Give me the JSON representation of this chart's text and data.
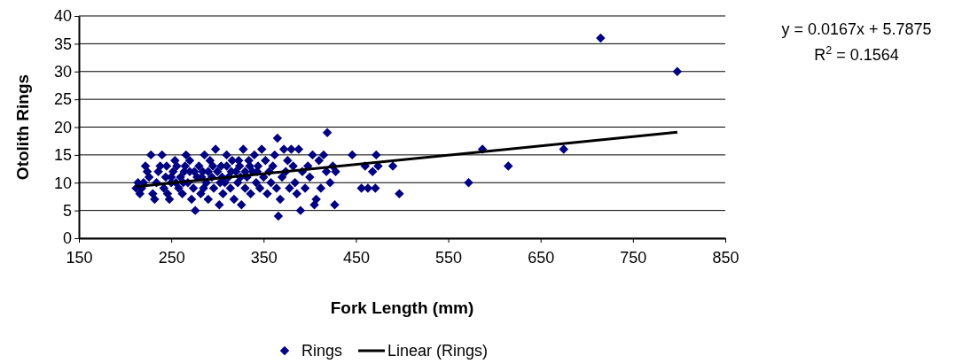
{
  "chart_data": {
    "type": "scatter",
    "xlabel": "Fork Length (mm)",
    "ylabel": "Otolith Rings",
    "xlim": [
      150,
      850
    ],
    "xticks": [
      150,
      250,
      350,
      450,
      550,
      650,
      750,
      850
    ],
    "ylim": [
      0,
      40
    ],
    "yticks": [
      0,
      5,
      10,
      15,
      20,
      25,
      30,
      35,
      40
    ],
    "grid": "y",
    "legend": "bottom",
    "annotations": [
      "y = 0.0167x + 5.7875",
      "R$^{2}$ = 0.1564"
    ],
    "series": [
      {
        "name": "Rings",
        "color": "#000080",
        "marker": "diamond",
        "x": [
          212,
          214,
          216,
          218,
          220,
          222,
          224,
          226,
          228,
          230,
          232,
          234,
          236,
          238,
          240,
          242,
          244,
          246,
          248,
          250,
          252,
          254,
          256,
          258,
          260,
          262,
          264,
          266,
          268,
          270,
          272,
          274,
          276,
          278,
          280,
          282,
          284,
          286,
          288,
          290,
          292,
          294,
          296,
          298,
          300,
          302,
          304,
          306,
          308,
          310,
          312,
          314,
          316,
          318,
          320,
          322,
          324,
          326,
          328,
          330,
          332,
          334,
          336,
          338,
          340,
          342,
          344,
          346,
          348,
          350,
          352,
          354,
          356,
          358,
          360,
          362,
          364,
          365,
          366,
          368,
          370,
          372,
          374,
          376,
          378,
          380,
          382,
          384,
          386,
          388,
          390,
          392,
          395,
          398,
          400,
          403,
          405,
          407,
          410,
          412,
          415,
          418,
          419,
          422,
          425,
          427,
          428,
          446,
          456,
          460,
          463,
          468,
          471,
          472,
          474,
          490,
          497,
          572,
          587,
          615,
          675,
          715,
          798,
          245,
          255,
          265,
          275,
          285,
          295,
          305,
          315,
          325,
          335,
          263,
          283,
          303,
          323,
          343,
          250,
          270,
          290,
          310,
          330
        ],
        "values": [
          9,
          10,
          8,
          9,
          10,
          13,
          12,
          11,
          15,
          8,
          7,
          10,
          12,
          13,
          15,
          9,
          11,
          8,
          7,
          10,
          12,
          14,
          13,
          9,
          11,
          8,
          12,
          15,
          10,
          14,
          7,
          9,
          5,
          11,
          13,
          8,
          12,
          15,
          10,
          7,
          14,
          11,
          9,
          16,
          12,
          6,
          13,
          8,
          10,
          15,
          11,
          9,
          14,
          7,
          12,
          10,
          13,
          6,
          16,
          9,
          11,
          14,
          8,
          12,
          15,
          10,
          13,
          9,
          16,
          11,
          14,
          8,
          12,
          10,
          13,
          15,
          9,
          18,
          4,
          7,
          11,
          16,
          12,
          14,
          9,
          16,
          13,
          10,
          8,
          16,
          5,
          12,
          9,
          13,
          11,
          15,
          6,
          7,
          14,
          9,
          15,
          12,
          19,
          10,
          13,
          6,
          12,
          15,
          9,
          13,
          9,
          12,
          9,
          15,
          13,
          13,
          8,
          10,
          16,
          13,
          16,
          36,
          30,
          13,
          10,
          13,
          12,
          9,
          13,
          11,
          12,
          11,
          13,
          10,
          11,
          10,
          14,
          12,
          11,
          12,
          12,
          13,
          12
        ]
      },
      {
        "name": "Linear (Rings)",
        "type": "line",
        "color": "#000000",
        "line_style": "solid",
        "x": [
          212,
          798
        ],
        "values": [
          9.3,
          19.1
        ]
      }
    ]
  }
}
